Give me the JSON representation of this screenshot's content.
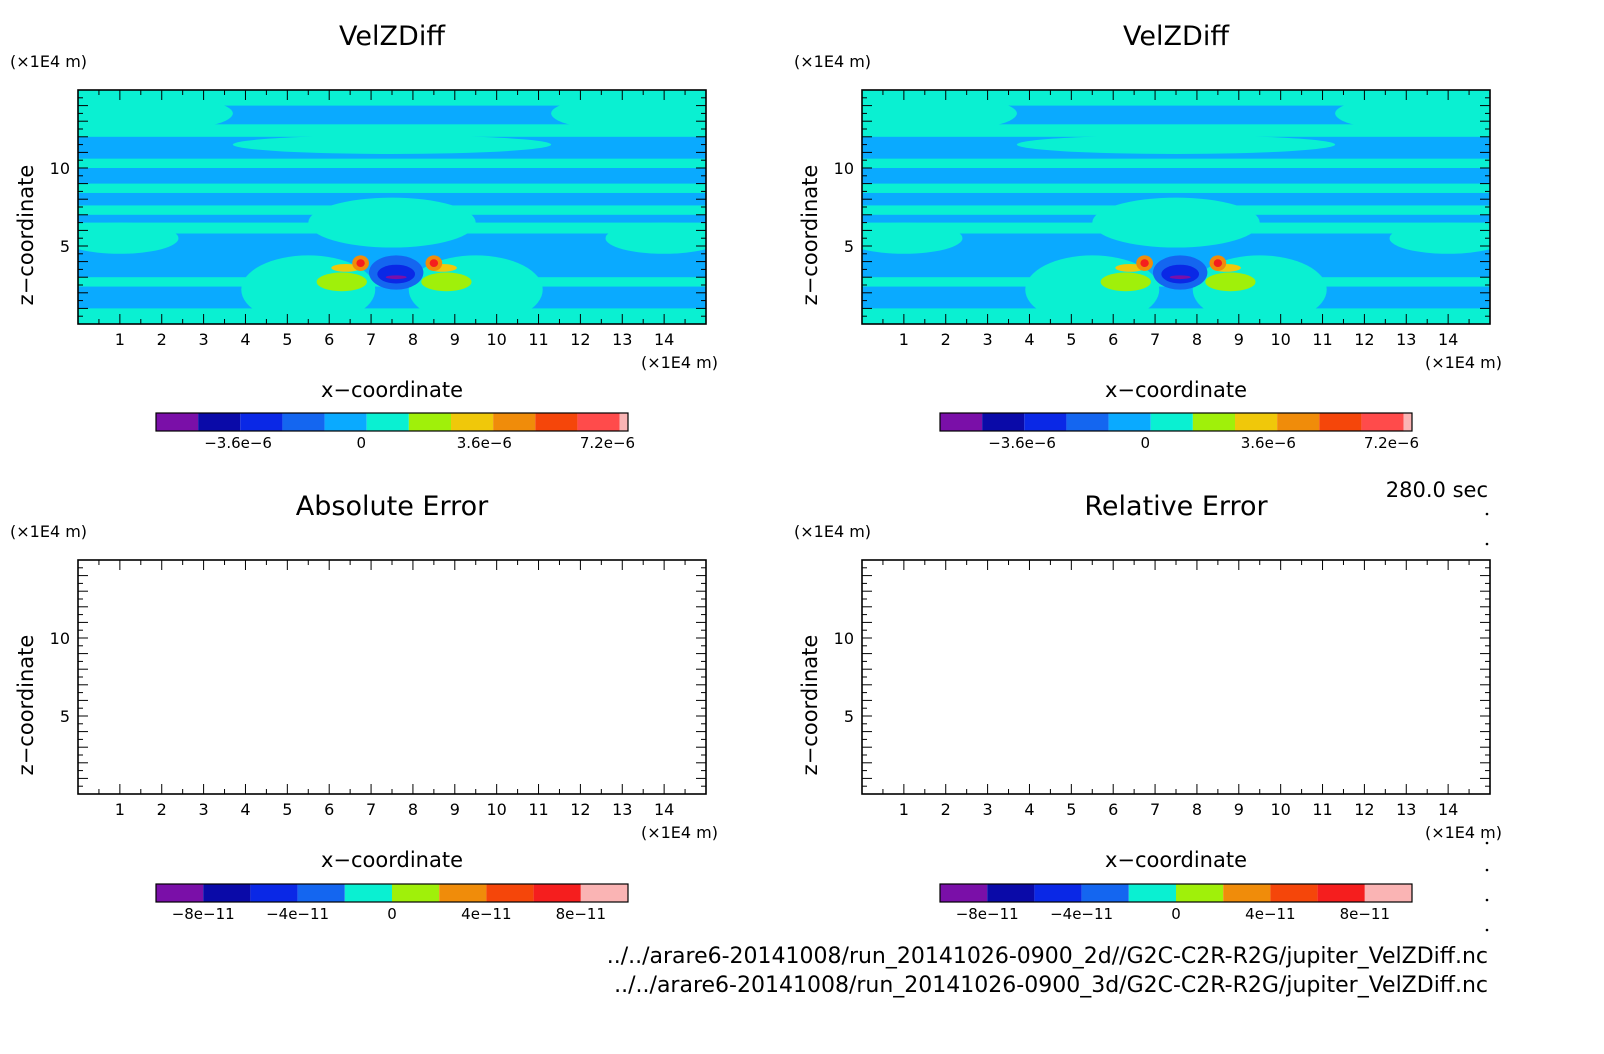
{
  "time_label": "280.0 sec",
  "files": [
    "../../arare6-20141008/run_20141026-0900_2d//G2C-C2R-R2G/jupiter_VelZDiff.nc",
    "../../arare6-20141008/run_20141026-0900_3d/G2C-C2R-R2G/jupiter_VelZDiff.nc"
  ],
  "colors": {
    "levels": [
      "#7a0fa8",
      "#0a0aa8",
      "#0a28e6",
      "#1466f0",
      "#0aaaff",
      "#0af0d2",
      "#a0f00a",
      "#f0c80a",
      "#f08c0a",
      "#f5460a",
      "#f51e1e",
      "#ff4b4b",
      "#fab4b4"
    ]
  },
  "chart_data": [
    {
      "type": "heatmap",
      "title": "VelZDiff",
      "xlabel": "x−coordinate",
      "ylabel": "z−coordinate",
      "x_unit": "(×1E4 m)",
      "y_unit": "(×1E4 m)",
      "xlim": [
        0,
        15
      ],
      "ylim": [
        0,
        15
      ],
      "x_ticks": [
        1,
        2,
        3,
        4,
        5,
        6,
        7,
        8,
        9,
        10,
        11,
        12,
        13,
        14
      ],
      "y_ticks": [
        5,
        10
      ],
      "field": "VelZDiff",
      "colorbar": {
        "ticks": [
          "−3.6e−6",
          "0",
          "3.6e−6",
          "7.2e−6"
        ],
        "tick_values": [
          -3.6e-06,
          0,
          3.6e-06,
          7.2e-06
        ],
        "levels": 11,
        "range": [
          -6e-06,
          7.8e-06
        ]
      },
      "filled": true
    },
    {
      "type": "heatmap",
      "title": "VelZDiff",
      "xlabel": "x−coordinate",
      "ylabel": "z−coordinate",
      "x_unit": "(×1E4 m)",
      "y_unit": "(×1E4 m)",
      "xlim": [
        0,
        15
      ],
      "ylim": [
        0,
        15
      ],
      "x_ticks": [
        1,
        2,
        3,
        4,
        5,
        6,
        7,
        8,
        9,
        10,
        11,
        12,
        13,
        14
      ],
      "y_ticks": [
        5,
        10
      ],
      "field": "VelZDiff",
      "colorbar": {
        "ticks": [
          "−3.6e−6",
          "0",
          "3.6e−6",
          "7.2e−6"
        ],
        "tick_values": [
          -3.6e-06,
          0,
          3.6e-06,
          7.2e-06
        ],
        "levels": 11,
        "range": [
          -6e-06,
          7.8e-06
        ]
      },
      "filled": true
    },
    {
      "type": "heatmap",
      "title": "Absolute Error",
      "xlabel": "x−coordinate",
      "ylabel": "z−coordinate",
      "x_unit": "(×1E4 m)",
      "y_unit": "(×1E4 m)",
      "xlim": [
        0,
        15
      ],
      "ylim": [
        0,
        15
      ],
      "x_ticks": [
        1,
        2,
        3,
        4,
        5,
        6,
        7,
        8,
        9,
        10,
        11,
        12,
        13,
        14
      ],
      "y_ticks": [
        5,
        10
      ],
      "field": "Absolute Error",
      "colorbar": {
        "ticks": [
          "−8e−11",
          "−4e−11",
          "0",
          "4e−11",
          "8e−11"
        ],
        "tick_values": [
          -8e-11,
          -4e-11,
          0,
          4e-11,
          8e-11
        ],
        "levels": 10,
        "range": [
          -1e-10,
          1e-10
        ]
      },
      "filled": false
    },
    {
      "type": "heatmap",
      "title": "Relative Error",
      "xlabel": "x−coordinate",
      "ylabel": "z−coordinate",
      "x_unit": "(×1E4 m)",
      "y_unit": "(×1E4 m)",
      "xlim": [
        0,
        15
      ],
      "ylim": [
        0,
        15
      ],
      "x_ticks": [
        1,
        2,
        3,
        4,
        5,
        6,
        7,
        8,
        9,
        10,
        11,
        12,
        13,
        14
      ],
      "y_ticks": [
        5,
        10
      ],
      "field": "Relative Error",
      "colorbar": {
        "ticks": [
          "−8e−11",
          "−4e−11",
          "0",
          "4e−11",
          "8e−11"
        ],
        "tick_values": [
          -8e-11,
          -4e-11,
          0,
          4e-11,
          8e-11
        ],
        "levels": 10,
        "range": [
          -1e-10,
          1e-10
        ]
      },
      "filled": false
    }
  ]
}
